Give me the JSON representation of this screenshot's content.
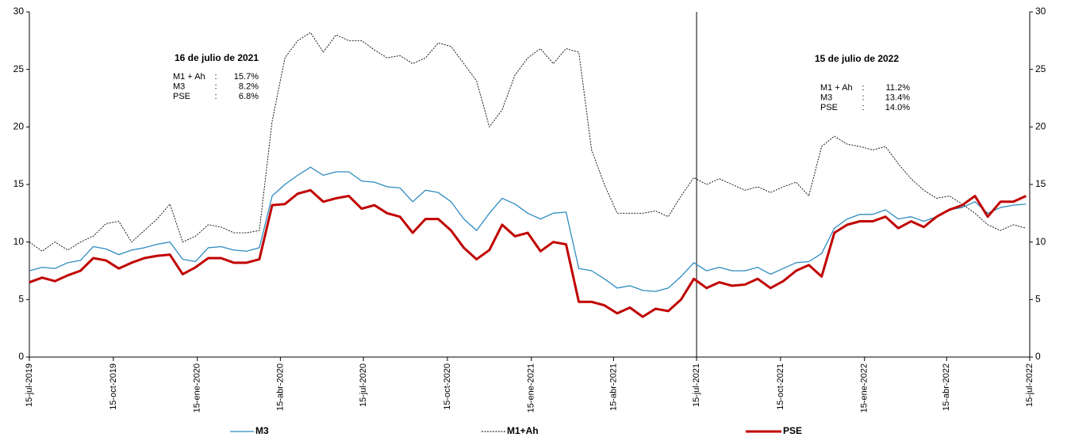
{
  "chart_data": {
    "type": "line",
    "x": [
      "2019-07-15",
      "2019-07-29",
      "2019-08-12",
      "2019-08-26",
      "2019-09-09",
      "2019-09-23",
      "2019-10-07",
      "2019-10-21",
      "2019-11-04",
      "2019-11-18",
      "2019-12-02",
      "2019-12-16",
      "2019-12-30",
      "2020-01-13",
      "2020-01-27",
      "2020-02-10",
      "2020-02-24",
      "2020-03-09",
      "2020-03-23",
      "2020-04-06",
      "2020-04-20",
      "2020-05-04",
      "2020-05-18",
      "2020-06-01",
      "2020-06-15",
      "2020-06-29",
      "2020-07-13",
      "2020-07-27",
      "2020-08-10",
      "2020-08-24",
      "2020-09-07",
      "2020-09-21",
      "2020-10-05",
      "2020-10-19",
      "2020-11-02",
      "2020-11-16",
      "2020-11-30",
      "2020-12-14",
      "2020-12-28",
      "2021-01-11",
      "2021-01-25",
      "2021-02-08",
      "2021-02-22",
      "2021-03-08",
      "2021-03-22",
      "2021-04-05",
      "2021-04-19",
      "2021-05-03",
      "2021-05-17",
      "2021-05-31",
      "2021-06-14",
      "2021-06-28",
      "2021-07-12",
      "2021-07-26",
      "2021-08-09",
      "2021-08-23",
      "2021-09-06",
      "2021-09-20",
      "2021-10-04",
      "2021-10-18",
      "2021-11-01",
      "2021-11-15",
      "2021-11-29",
      "2021-12-13",
      "2021-12-27",
      "2022-01-10",
      "2022-01-24",
      "2022-02-07",
      "2022-02-21",
      "2022-03-07",
      "2022-03-21",
      "2022-04-04",
      "2022-04-18",
      "2022-05-02",
      "2022-05-16",
      "2022-05-30",
      "2022-06-13",
      "2022-06-27",
      "2022-07-11"
    ],
    "series": [
      {
        "name": "M3",
        "color": "#2e8bc0",
        "width": 1.3,
        "style": "solid",
        "values": [
          7.5,
          7.8,
          7.7,
          8.2,
          8.4,
          9.6,
          9.4,
          8.9,
          9.3,
          9.5,
          9.8,
          10.0,
          8.5,
          8.3,
          9.5,
          9.6,
          9.3,
          9.2,
          9.5,
          14.0,
          15.0,
          15.8,
          16.5,
          15.8,
          16.1,
          16.1,
          15.3,
          15.2,
          14.8,
          14.7,
          13.5,
          14.5,
          14.3,
          13.5,
          12.0,
          11.0,
          12.5,
          13.8,
          13.3,
          12.5,
          12.0,
          12.5,
          12.6,
          7.7,
          7.5,
          6.8,
          6.0,
          6.2,
          5.8,
          5.7,
          6.0,
          7.0,
          8.2,
          7.5,
          7.8,
          7.5,
          7.5,
          7.8,
          7.2,
          7.7,
          8.2,
          8.3,
          9.0,
          11.2,
          12.0,
          12.4,
          12.4,
          12.8,
          12.0,
          12.2,
          11.8,
          12.2,
          12.8,
          13.0,
          13.5,
          12.5,
          13.0,
          13.2,
          13.3
        ]
      },
      {
        "name": "M1+Ah",
        "color": "#000000",
        "width": 0.9,
        "style": "dotted",
        "values": [
          10.0,
          9.2,
          10.0,
          9.3,
          10.0,
          10.5,
          11.6,
          11.8,
          10.0,
          11.0,
          12.0,
          13.3,
          10.0,
          10.5,
          11.5,
          11.3,
          10.8,
          10.8,
          11.0,
          20.5,
          26.0,
          27.5,
          28.2,
          26.5,
          28.0,
          27.5,
          27.5,
          26.7,
          26.0,
          26.2,
          25.5,
          26.0,
          27.3,
          27.0,
          25.5,
          24.0,
          20.0,
          21.5,
          24.5,
          26.0,
          26.8,
          25.5,
          26.8,
          26.5,
          18.0,
          15.0,
          12.5,
          12.5,
          12.5,
          12.7,
          12.2,
          14.0,
          15.6,
          15.0,
          15.5,
          15.0,
          14.5,
          14.8,
          14.3,
          14.8,
          15.2,
          14.0,
          18.3,
          19.2,
          18.5,
          18.3,
          18.0,
          18.3,
          16.8,
          15.5,
          14.5,
          13.8,
          14.0,
          13.3,
          12.5,
          11.5,
          11.0,
          11.5,
          11.2
        ]
      },
      {
        "name": "PSE",
        "color": "#c00000",
        "width": 3,
        "style": "solid",
        "values": [
          6.5,
          6.9,
          6.6,
          7.1,
          7.5,
          8.6,
          8.4,
          7.7,
          8.2,
          8.6,
          8.8,
          8.9,
          7.2,
          7.8,
          8.6,
          8.6,
          8.2,
          8.2,
          8.5,
          13.2,
          13.3,
          14.2,
          14.5,
          13.5,
          13.8,
          14.0,
          12.9,
          13.2,
          12.5,
          12.2,
          10.8,
          12.0,
          12.0,
          11.0,
          9.5,
          8.5,
          9.3,
          11.5,
          10.5,
          10.8,
          9.2,
          10.0,
          9.8,
          4.8,
          4.8,
          4.5,
          3.8,
          4.3,
          3.5,
          4.2,
          4.0,
          5.0,
          6.8,
          6.0,
          6.5,
          6.2,
          6.3,
          6.8,
          6.0,
          6.6,
          7.5,
          8.0,
          7.0,
          10.8,
          11.5,
          11.8,
          11.8,
          12.2,
          11.2,
          11.8,
          11.3,
          12.2,
          12.8,
          13.2,
          14.0,
          12.2,
          13.5,
          13.5,
          14.0
        ]
      }
    ],
    "xlim": [
      "2019-07-15",
      "2022-07-15"
    ],
    "xticks": [
      {
        "value": "2019-07-15",
        "label": "15-jul-2019"
      },
      {
        "value": "2019-10-15",
        "label": "15-oct-2019"
      },
      {
        "value": "2020-01-15",
        "label": "15-ene-2020"
      },
      {
        "value": "2020-04-15",
        "label": "15-abr-2020"
      },
      {
        "value": "2020-07-15",
        "label": "15-jul-2020"
      },
      {
        "value": "2020-10-15",
        "label": "15-oct-2020"
      },
      {
        "value": "2021-01-15",
        "label": "15-ene-2021"
      },
      {
        "value": "2021-04-15",
        "label": "15-abr-2021"
      },
      {
        "value": "2021-07-15",
        "label": "15-jul-2021"
      },
      {
        "value": "2021-10-15",
        "label": "15-oct-2021"
      },
      {
        "value": "2022-01-15",
        "label": "15-ene-2022"
      },
      {
        "value": "2022-04-15",
        "label": "15-abr-2022"
      },
      {
        "value": "2022-07-15",
        "label": "15-jul-2022"
      }
    ],
    "ylim": [
      0,
      30
    ],
    "yticks": [
      0,
      5,
      10,
      15,
      20,
      25,
      30
    ],
    "y2lim": [
      0,
      30
    ],
    "y2ticks": [
      0,
      5,
      10,
      15,
      20,
      25,
      30
    ],
    "vline": "2021-07-15",
    "legend": "bottom",
    "annotations": [
      {
        "title": "16 de julio de 2021",
        "rows": [
          [
            "M1 + Ah",
            ":",
            "15.7%"
          ],
          [
            "M3",
            ":",
            "8.2%"
          ],
          [
            "PSE",
            ":",
            "6.8%"
          ]
        ]
      },
      {
        "title": "15 de julio de 2022",
        "rows": [
          [
            "M1 + Ah",
            ":",
            "11.2%"
          ],
          [
            "M3",
            ":",
            "13.4%"
          ],
          [
            "PSE",
            ":",
            "14.0%"
          ]
        ]
      }
    ]
  }
}
